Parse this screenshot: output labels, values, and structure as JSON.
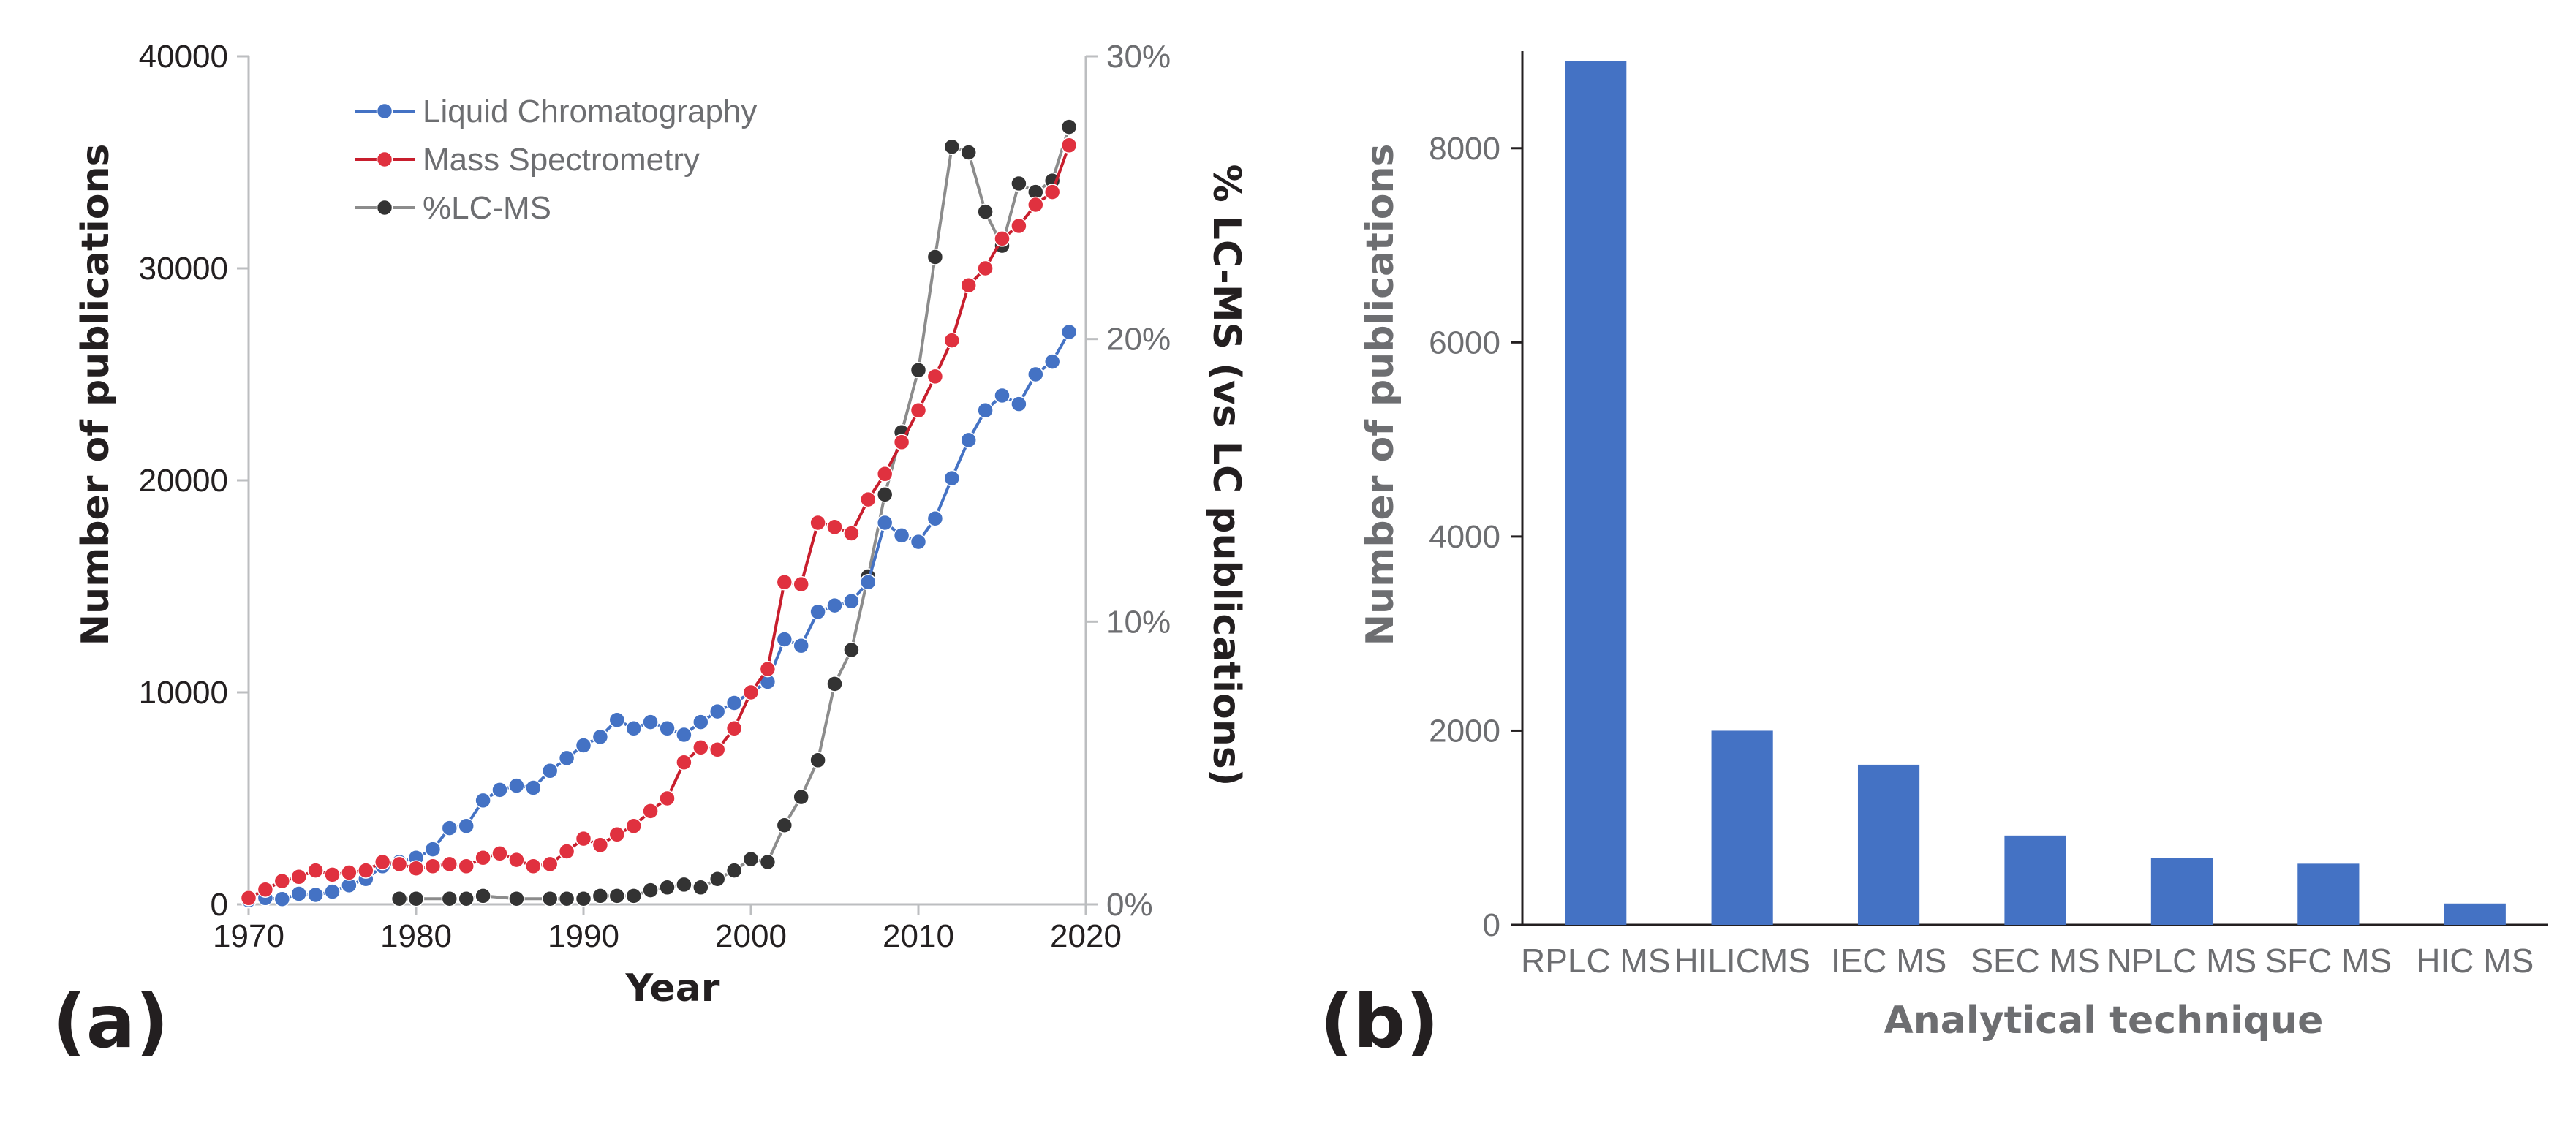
{
  "chart_data": [
    {
      "type": "line",
      "panel_label": "(a)",
      "xlabel": "Year",
      "ylabel": "Number of publications",
      "y2label": "% LC-MS (vs LC publications)",
      "xlim": [
        1970,
        2020
      ],
      "ylim": [
        0,
        40000
      ],
      "y2lim": [
        0,
        30
      ],
      "xticks": [
        "1970",
        "1980",
        "1990",
        "2000",
        "2010",
        "2020"
      ],
      "yticks": [
        "0",
        "10000",
        "20000",
        "30000",
        "40000"
      ],
      "y2ticks": [
        "0%",
        "10%",
        "20%",
        "30%"
      ],
      "legend_position": "top-left",
      "series": [
        {
          "name": "Liquid Chromatography",
          "axis": "left",
          "color": "#4472c4",
          "line_color": "#4472c4",
          "x": [
            1970,
            1971,
            1972,
            1973,
            1974,
            1975,
            1976,
            1977,
            1978,
            1979,
            1980,
            1981,
            1982,
            1983,
            1984,
            1985,
            1986,
            1987,
            1988,
            1989,
            1990,
            1991,
            1992,
            1993,
            1994,
            1995,
            1996,
            1997,
            1998,
            1999,
            2000,
            2001,
            2002,
            2003,
            2004,
            2005,
            2006,
            2007,
            2008,
            2009,
            2010,
            2011,
            2012,
            2013,
            2014,
            2015,
            2016,
            2017,
            2018,
            2019
          ],
          "y": [
            200,
            300,
            250,
            500,
            450,
            600,
            900,
            1200,
            1800,
            2000,
            2200,
            2600,
            3600,
            3700,
            4900,
            5400,
            5600,
            5500,
            6300,
            6900,
            7500,
            7900,
            8700,
            8300,
            8600,
            8300,
            8000,
            8600,
            9100,
            9500,
            10000,
            10500,
            12500,
            12200,
            13800,
            14100,
            14300,
            15200,
            18000,
            17400,
            17100,
            18200,
            20100,
            21900,
            23300,
            24000,
            23600,
            25000,
            25600,
            27000
          ]
        },
        {
          "name": "Mass Spectrometry",
          "axis": "left",
          "color": "#e0313f",
          "line_color": "#c81e2d",
          "x": [
            1970,
            1971,
            1972,
            1973,
            1974,
            1975,
            1976,
            1977,
            1978,
            1979,
            1980,
            1981,
            1982,
            1983,
            1984,
            1985,
            1986,
            1987,
            1988,
            1989,
            1990,
            1991,
            1992,
            1993,
            1994,
            1995,
            1996,
            1997,
            1998,
            1999,
            2000,
            2001,
            2002,
            2003,
            2004,
            2005,
            2006,
            2007,
            2008,
            2009,
            2010,
            2011,
            2012,
            2013,
            2014,
            2015,
            2016,
            2017,
            2018,
            2019
          ],
          "y": [
            300,
            700,
            1100,
            1300,
            1600,
            1400,
            1500,
            1600,
            2000,
            1900,
            1700,
            1800,
            1900,
            1800,
            2200,
            2400,
            2100,
            1800,
            1900,
            2500,
            3100,
            2800,
            3300,
            3700,
            4400,
            5000,
            6700,
            7400,
            7300,
            8300,
            10000,
            11100,
            15200,
            15100,
            18000,
            17800,
            17500,
            19100,
            20300,
            21800,
            23300,
            24900,
            26600,
            29200,
            30000,
            31400,
            32000,
            33000,
            33600,
            35800
          ]
        },
        {
          "name": "%LC-MS",
          "axis": "right",
          "color": "#333333",
          "line_color": "#8c8c8c",
          "x": [
            1979,
            1980,
            1982,
            1983,
            1984,
            1986,
            1988,
            1989,
            1990,
            1991,
            1992,
            1993,
            1994,
            1995,
            1996,
            1997,
            1998,
            1999,
            2000,
            2001,
            2002,
            2003,
            2004,
            2005,
            2006,
            2007,
            2008,
            2009,
            2010,
            2011,
            2012,
            2013,
            2014,
            2015,
            2016,
            2017,
            2018,
            2019
          ],
          "y": [
            0.2,
            0.2,
            0.2,
            0.2,
            0.3,
            0.2,
            0.2,
            0.2,
            0.2,
            0.3,
            0.3,
            0.3,
            0.5,
            0.6,
            0.7,
            0.6,
            0.9,
            1.2,
            1.6,
            1.5,
            2.8,
            3.8,
            5.1,
            7.8,
            9.0,
            11.6,
            14.5,
            16.7,
            18.9,
            22.9,
            26.8,
            26.6,
            24.5,
            23.3,
            25.5,
            25.2,
            25.6,
            27.5
          ]
        }
      ]
    },
    {
      "type": "bar",
      "panel_label": "(b)",
      "xlabel": "Analytical technique",
      "ylabel": "Number of publications",
      "ylim": [
        0,
        9000
      ],
      "yticks": [
        "0",
        "2000",
        "4000",
        "6000",
        "8000"
      ],
      "color": "#4472c4",
      "categories": [
        "RPLC MS",
        "HILICMS",
        "IEC MS",
        "SEC MS",
        "NPLC MS",
        "SFC MS",
        "HIC MS"
      ],
      "values": [
        8900,
        2000,
        1650,
        920,
        690,
        630,
        220
      ]
    }
  ]
}
